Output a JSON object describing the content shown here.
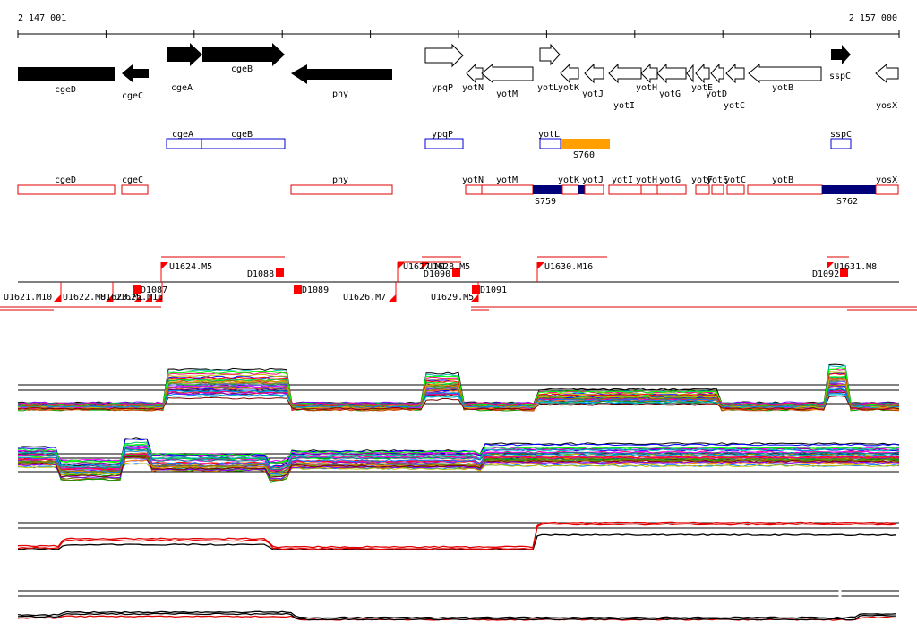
{
  "ruler": {
    "start_label": "2 147 001",
    "end_label": "2 157 000"
  },
  "genes": [
    {
      "id": "cgeD",
      "label": "cgeD",
      "dir": "-",
      "fill": "black"
    },
    {
      "id": "cgeC",
      "label": "cgeC",
      "dir": "-",
      "fill": "black"
    },
    {
      "id": "cgeA",
      "label": "cgeA",
      "dir": "+",
      "fill": "black"
    },
    {
      "id": "cgeB",
      "label": "cgeB",
      "dir": "+",
      "fill": "black"
    },
    {
      "id": "phy",
      "label": "phy",
      "dir": "-",
      "fill": "black"
    },
    {
      "id": "ypqP",
      "label": "ypqP",
      "dir": "+",
      "fill": "white"
    },
    {
      "id": "yotN",
      "label": "yotN",
      "dir": "-",
      "fill": "white"
    },
    {
      "id": "yotM",
      "label": "yotM",
      "dir": "-",
      "fill": "white"
    },
    {
      "id": "yotL",
      "label": "yotL",
      "dir": "+",
      "fill": "white"
    },
    {
      "id": "yotK",
      "label": "yotK",
      "dir": "-",
      "fill": "white"
    },
    {
      "id": "yotJ",
      "label": "yotJ",
      "dir": "-",
      "fill": "white"
    },
    {
      "id": "yotI",
      "label": "yotI",
      "dir": "-",
      "fill": "white"
    },
    {
      "id": "yotH",
      "label": "yotH",
      "dir": "-",
      "fill": "white"
    },
    {
      "id": "yotG",
      "label": "yotG",
      "dir": "-",
      "fill": "white"
    },
    {
      "id": "yotF",
      "label": "yotF",
      "dir": "-",
      "fill": "white"
    },
    {
      "id": "yotE",
      "label": "yotE",
      "dir": "-",
      "fill": "white"
    },
    {
      "id": "yotD",
      "label": "yotD",
      "dir": "-",
      "fill": "white"
    },
    {
      "id": "yotC",
      "label": "yotC",
      "dir": "-",
      "fill": "white"
    },
    {
      "id": "yotB",
      "label": "yotB",
      "dir": "-",
      "fill": "white"
    },
    {
      "id": "sspC",
      "label": "sspC",
      "dir": "+",
      "fill": "black"
    },
    {
      "id": "yosX",
      "label": "yosX",
      "dir": "-",
      "fill": "white"
    }
  ],
  "forward_transcripts": [
    {
      "label": "cgeA"
    },
    {
      "label": "cgeB"
    },
    {
      "label": "ypqP"
    },
    {
      "label": "yotL"
    },
    {
      "label": "sspC"
    }
  ],
  "forward_segment_label": "S760",
  "reverse_transcripts": [
    {
      "label": "cgeD"
    },
    {
      "label": "cgeC"
    },
    {
      "label": "phy"
    },
    {
      "label": "yotN"
    },
    {
      "label": "yotM"
    },
    {
      "label": "yotK"
    },
    {
      "label": "yotJ"
    },
    {
      "label": "yotI"
    },
    {
      "label": "yotH"
    },
    {
      "label": "yotG"
    },
    {
      "label": "yotF"
    },
    {
      "label": "yotE"
    },
    {
      "label": "yotD"
    },
    {
      "label": "yotC"
    },
    {
      "label": "yotB"
    },
    {
      "label": "yosX"
    }
  ],
  "reverse_segment_labels": [
    "S759",
    "S762"
  ],
  "upstream_features": [
    "U1624.M5",
    "U1627.M1",
    "U1628.M5",
    "U1630.M16",
    "U1631.M8",
    "U1621.M10",
    "U1622.M8",
    "U1623.M1",
    "U1625.M16",
    "U1626.M7",
    "U1629.M5"
  ],
  "downstream_features": [
    "D1088",
    "D1087",
    "D1089",
    "D1090",
    "D1091",
    "D1092"
  ],
  "colors": {
    "reverse_strand": "#e00000",
    "forward_strand": "#0000cc",
    "segment_forward": "#ffa000",
    "segment_reverse": "#00007a",
    "marker": "#ff0000"
  },
  "chart_data": {
    "type": "line",
    "panels": [
      "expression-forward",
      "expression-reverse",
      "summary-forward",
      "summary-reverse"
    ]
  }
}
